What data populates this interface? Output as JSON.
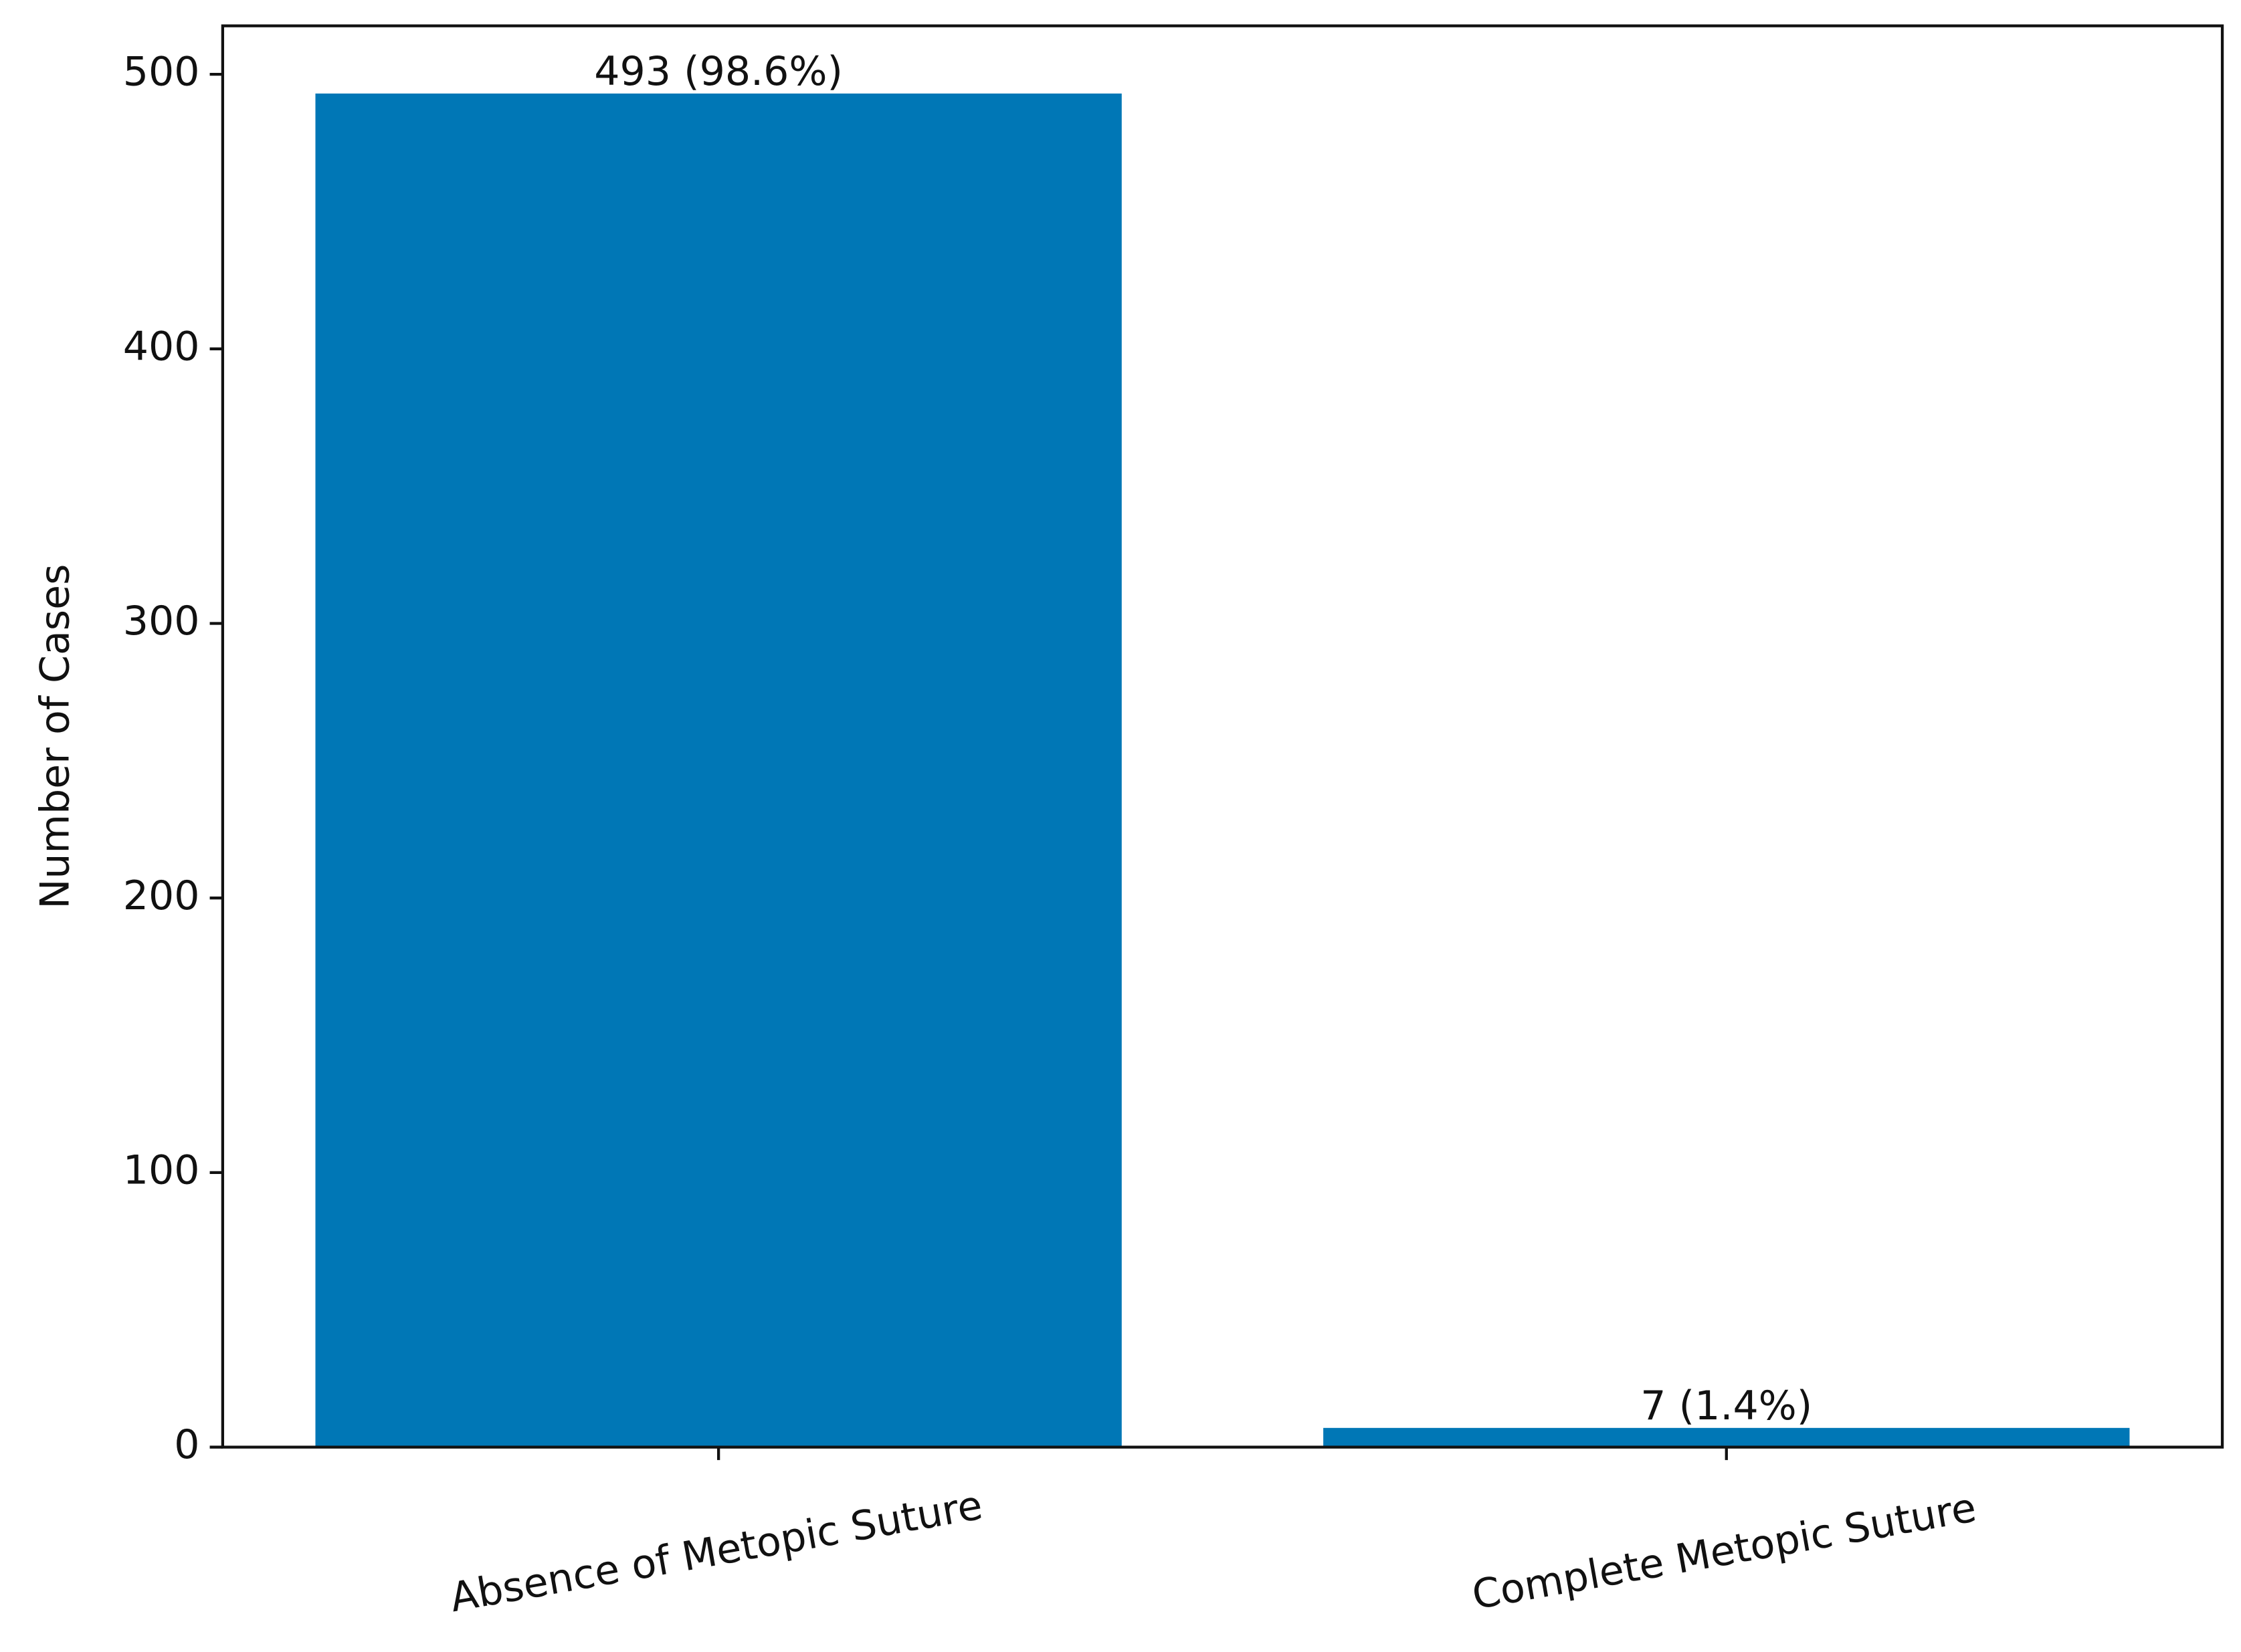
{
  "chart_data": {
    "type": "bar",
    "y_label": "Number of Cases",
    "categories": [
      "Absence of Metopic Suture",
      "Complete Metopic Suture"
    ],
    "values": [
      493,
      7
    ],
    "value_labels": [
      "493 (98.6%)",
      "7 (1.4%)"
    ],
    "color": "#0077b6",
    "ylim": [
      0,
      517.65
    ],
    "yticks": [
      0,
      100,
      200,
      300,
      400,
      500
    ],
    "grid": false
  }
}
